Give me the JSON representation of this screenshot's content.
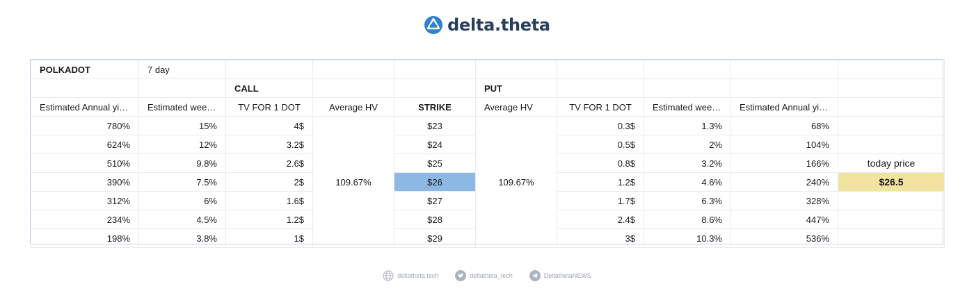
{
  "brand": {
    "name": "delta.theta",
    "accent": "#2f80d1",
    "text_color": "#263f5c"
  },
  "table": {
    "asset": "POLKADOT",
    "period": "7 day",
    "call_label": "CALL",
    "put_label": "PUT",
    "headers": {
      "call_annual": "Estimated Annual yield",
      "call_weekly": "Estimated weekly",
      "call_tv": "TV FOR 1 DOT",
      "call_hv": "Average HV",
      "strike": "STRIKE",
      "put_hv": "Average HV",
      "put_tv": "TV FOR 1 DOT",
      "put_weekly": "Estimated weekly",
      "put_annual": "Estimated Annual yield"
    },
    "call_average_hv": "109.67%",
    "put_average_hv": "109.67%",
    "rows": [
      {
        "call_annual": "780%",
        "call_weekly": "15%",
        "call_tv": "4$",
        "strike": "$23",
        "put_tv": "0.3$",
        "put_weekly": "1.3%",
        "put_annual": "68%"
      },
      {
        "call_annual": "624%",
        "call_weekly": "12%",
        "call_tv": "3.2$",
        "strike": "$24",
        "put_tv": "0.5$",
        "put_weekly": "2%",
        "put_annual": "104%"
      },
      {
        "call_annual": "510%",
        "call_weekly": "9.8%",
        "call_tv": "2.6$",
        "strike": "$25",
        "put_tv": "0.8$",
        "put_weekly": "3.2%",
        "put_annual": "166%"
      },
      {
        "call_annual": "390%",
        "call_weekly": "7.5%",
        "call_tv": "2$",
        "strike": "$26",
        "put_tv": "1.2$",
        "put_weekly": "4.6%",
        "put_annual": "240%"
      },
      {
        "call_annual": "312%",
        "call_weekly": "6%",
        "call_tv": "1.6$",
        "strike": "$27",
        "put_tv": "1.7$",
        "put_weekly": "6.3%",
        "put_annual": "328%"
      },
      {
        "call_annual": "234%",
        "call_weekly": "4.5%",
        "call_tv": "1.2$",
        "strike": "$28",
        "put_tv": "2.4$",
        "put_weekly": "8.6%",
        "put_annual": "447%"
      },
      {
        "call_annual": "198%",
        "call_weekly": "3.8%",
        "call_tv": "1$",
        "strike": "$29",
        "put_tv": "3$",
        "put_weekly": "10.3%",
        "put_annual": "536%"
      }
    ],
    "today_price_label": "today price",
    "today_price": "$26.5",
    "highlight_strike_color": "#8db8e3",
    "highlight_today_color": "#f2e49e"
  },
  "footer": {
    "website": "deltatheta.tech",
    "twitter": "deltatheta_tech",
    "telegram": "DeltathetaNEWS",
    "icons": [
      "globe-icon",
      "twitter-icon",
      "telegram-icon"
    ]
  }
}
